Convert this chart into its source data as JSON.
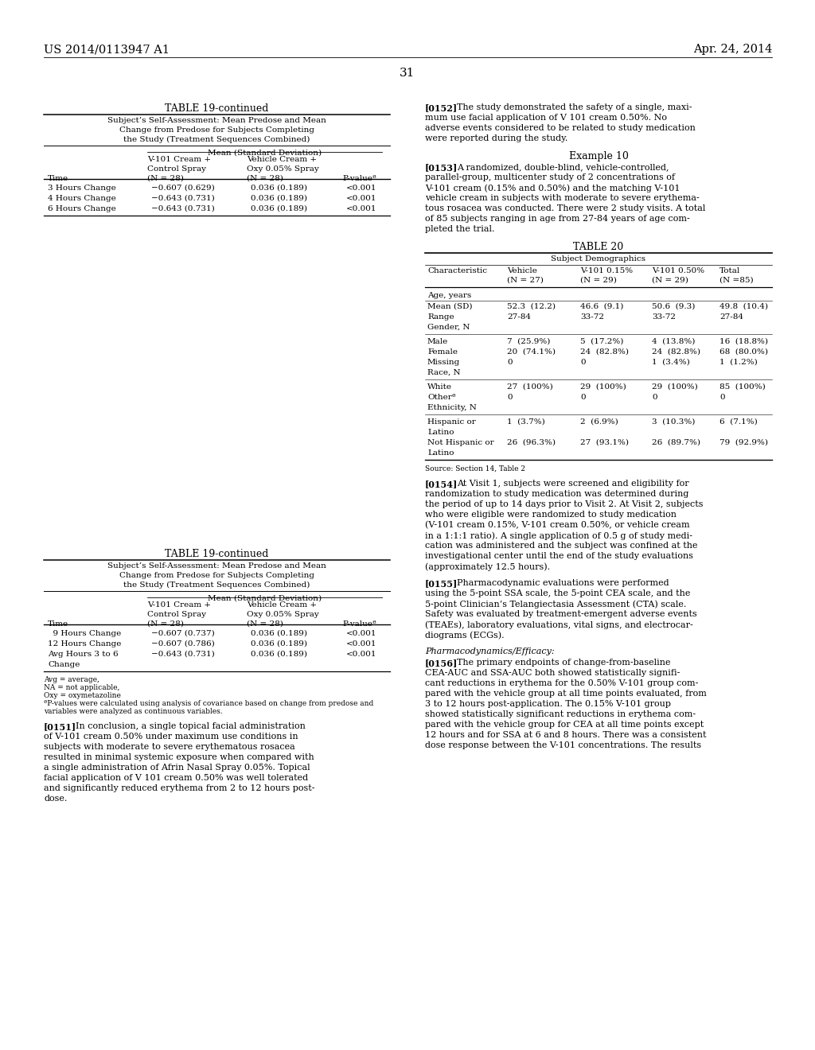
{
  "page_header_left": "US 2014/0113947 A1",
  "page_header_right": "Apr. 24, 2014",
  "page_number": "31",
  "table19_top_title": "TABLE 19-continued",
  "table19_top_subtitle_lines": [
    "Subject’s Self-Assessment: Mean Predose and Mean",
    "Change from Predose for Subjects Completing",
    "the Study (Treatment Sequences Combined)"
  ],
  "table19_subheader": "Mean (Standard Deviation)",
  "table19_top_rows": [
    [
      "3 Hours Change",
      "−0.607 (0.629)",
      "0.036 (0.189)",
      "<0.001"
    ],
    [
      "4 Hours Change",
      "−0.643 (0.731)",
      "0.036 (0.189)",
      "<0.001"
    ],
    [
      "6 Hours Change",
      "−0.643 (0.731)",
      "0.036 (0.189)",
      "<0.001"
    ]
  ],
  "table19_bot_title": "TABLE 19-continued",
  "table19_bot_subtitle_lines": [
    "Subject’s Self-Assessment: Mean Predose and Mean",
    "Change from Predose for Subjects Completing",
    "the Study (Treatment Sequences Combined)"
  ],
  "table19_bot_rows": [
    [
      "  9 Hours Change",
      "−0.607 (0.737)",
      "0.036 (0.189)",
      "<0.001"
    ],
    [
      "12 Hours Change",
      "−0.607 (0.786)",
      "0.036 (0.189)",
      "<0.001"
    ],
    [
      "Avg Hours 3 to 6",
      "−0.643 (0.731)",
      "0.036 (0.189)",
      "<0.001"
    ],
    [
      "Change",
      "",
      "",
      ""
    ]
  ],
  "table19_footnotes": [
    "Avg = average,",
    "NA = not applicable,",
    "Oxy = oxymetazoline",
    "ªP-values were calculated using analysis of covariance based on change from predose and",
    "variables were analyzed as continuous variables."
  ],
  "para151_lines": [
    "[0151]    In conclusion, a single topical facial administration",
    "of V-101 cream 0.50% under maximum use conditions in",
    "subjects with moderate to severe erythematous rosacea",
    "resulted in minimal systemic exposure when compared with",
    "a single administration of Afrin Nasal Spray 0.05%. Topical",
    "facial application of V 101 cream 0.50% was well tolerated",
    "and significantly reduced erythema from 2 to 12 hours post-",
    "dose."
  ],
  "para152_lines": [
    "[0152]    The study demonstrated the safety of a single, maxi-",
    "mum use facial application of V 101 cream 0.50%. No",
    "adverse events considered to be related to study medication",
    "were reported during the study."
  ],
  "example10": "Example 10",
  "para153_lines": [
    "[0153]    A randomized, double-blind, vehicle-controlled,",
    "parallel-group, multicenter study of 2 concentrations of",
    "V-101 cream (0.15% and 0.50%) and the matching V-101",
    "vehicle cream in subjects with moderate to severe erythema-",
    "tous rosacea was conducted. There were 2 study visits. A total",
    "of 85 subjects ranging in age from 27-84 years of age com-",
    "pleted the trial."
  ],
  "table20_title": "TABLE 20",
  "table20_subheader": "Subject Demographics",
  "table20_col_headers": [
    [
      "Characteristic",
      ""
    ],
    [
      "Vehicle",
      "(N = 27)"
    ],
    [
      "V-101 0.15%",
      "(N = 29)"
    ],
    [
      "V-101 0.50%",
      "(N = 29)"
    ],
    [
      "Total",
      "(N =85)"
    ]
  ],
  "table20_age_header": "Age, years",
  "table20_age_rows": [
    [
      "Mean (SD)",
      "52.3  (12.2)",
      "46.6  (9.1)",
      "50.6  (9.3)",
      "49.8  (10.4)"
    ],
    [
      "Range",
      "27-84",
      "33-72",
      "33-72",
      "27-84"
    ],
    [
      "Gender, N",
      "",
      "",
      "",
      ""
    ]
  ],
  "table20_gender_rows": [
    [
      "Male",
      "7  (25.9%)",
      "5  (17.2%)",
      "4  (13.8%)",
      "16  (18.8%)"
    ],
    [
      "Female",
      "20  (74.1%)",
      "24  (82.8%)",
      "24  (82.8%)",
      "68  (80.0%)"
    ],
    [
      "Missing",
      "0",
      "0",
      "1  (3.4%)",
      "1  (1.2%)"
    ],
    [
      "Race, N",
      "",
      "",
      "",
      ""
    ]
  ],
  "table20_race_rows": [
    [
      "White",
      "27  (100%)",
      "29  (100%)",
      "29  (100%)",
      "85  (100%)"
    ],
    [
      "Otherª",
      "0",
      "0",
      "0",
      "0"
    ],
    [
      "Ethnicity, N",
      "",
      "",
      "",
      ""
    ]
  ],
  "table20_eth_rows": [
    [
      "Hispanic or",
      "1  (3.7%)",
      "2  (6.9%)",
      "3  (10.3%)",
      "6  (7.1%)"
    ],
    [
      "Latino",
      "",
      "",
      "",
      ""
    ],
    [
      "Not Hispanic or",
      "26  (96.3%)",
      "27  (93.1%)",
      "26  (89.7%)",
      "79  (92.9%)"
    ],
    [
      "Latino",
      "",
      "",
      "",
      ""
    ]
  ],
  "table20_source": "Source: Section 14, Table 2",
  "para154_lines": [
    "[0154]    At Visit 1, subjects were screened and eligibility for",
    "randomization to study medication was determined during",
    "the period of up to 14 days prior to Visit 2. At Visit 2, subjects",
    "who were eligible were randomized to study medication",
    "(V-101 cream 0.15%, V-101 cream 0.50%, or vehicle cream",
    "in a 1:1:1 ratio). A single application of 0.5 g of study medi-",
    "cation was administered and the subject was confined at the",
    "investigational center until the end of the study evaluations",
    "(approximately 12.5 hours)."
  ],
  "para155_lines": [
    "[0155]    Pharmacodynamic evaluations were performed",
    "using the 5-point SSA scale, the 5-point CEA scale, and the",
    "5-point Clinician’s Telangiectasia Assessment (CTA) scale.",
    "Safety was evaluated by treatment-emergent adverse events",
    "(TEAEs), laboratory evaluations, vital signs, and electrocar-",
    "diograms (ECGs)."
  ],
  "pharmaco_title": "Pharmacodynamics/Efficacy:",
  "para156_lines": [
    "[0156]    The primary endpoints of change-from-baseline",
    "CEA-AUC and SSA-AUC both showed statistically signifi-",
    "cant reductions in erythema for the 0.50% V-101 group com-",
    "pared with the vehicle group at all time points evaluated, from",
    "3 to 12 hours post-application. The 0.15% V-101 group",
    "showed statistically significant reductions in erythema com-",
    "pared with the vehicle group for CEA at all time points except",
    "12 hours and for SSA at 6 and 8 hours. There was a consistent",
    "dose response between the V-101 concentrations. The results"
  ]
}
